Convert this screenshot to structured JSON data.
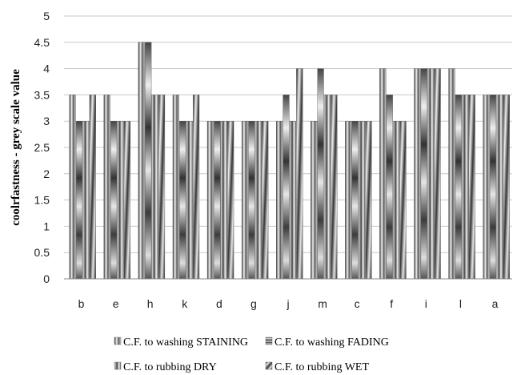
{
  "chart_data": {
    "type": "bar",
    "title": "",
    "xlabel": "",
    "ylabel": "coolrfastness - grey scale  value",
    "ylim": [
      0,
      5
    ],
    "yticks": [
      "0",
      "0.5",
      "1",
      "1.5",
      "2",
      "2.5",
      "3",
      "3.5",
      "4",
      "4.5",
      "5"
    ],
    "ytick_values": [
      0,
      0.5,
      1,
      1.5,
      2,
      2.5,
      3,
      3.5,
      4,
      4.5,
      5
    ],
    "grid": true,
    "legend_position": "bottom",
    "categories": [
      "b",
      "e",
      "h",
      "k",
      "d",
      "g",
      "j",
      "m",
      "c",
      "f",
      "i",
      "l",
      "a"
    ],
    "series": [
      {
        "name": "C.F. to washing STAINING",
        "values": [
          3.5,
          3.5,
          4.5,
          3.5,
          3,
          3,
          3,
          3,
          3,
          4,
          4,
          4,
          3.5
        ],
        "color": "#9a9a9a"
      },
      {
        "name": "C.F. to washing FADING",
        "values": [
          3,
          3,
          4.5,
          3,
          3,
          3,
          3.5,
          4,
          3,
          3.5,
          4,
          3.5,
          3.5
        ],
        "color": "#7a7a7a"
      },
      {
        "name": "C.F. to rubbing DRY",
        "values": [
          3,
          3,
          3.5,
          3,
          3,
          3,
          3,
          3.5,
          3,
          3,
          4,
          3.5,
          3.5
        ],
        "color": "#8a8a8a"
      },
      {
        "name": "C.F. to rubbing WET",
        "values": [
          3.5,
          3,
          3.5,
          3.5,
          3,
          3,
          4,
          3.5,
          3,
          3,
          4,
          3.5,
          3.5
        ],
        "color": "#5a5a5a"
      }
    ]
  }
}
